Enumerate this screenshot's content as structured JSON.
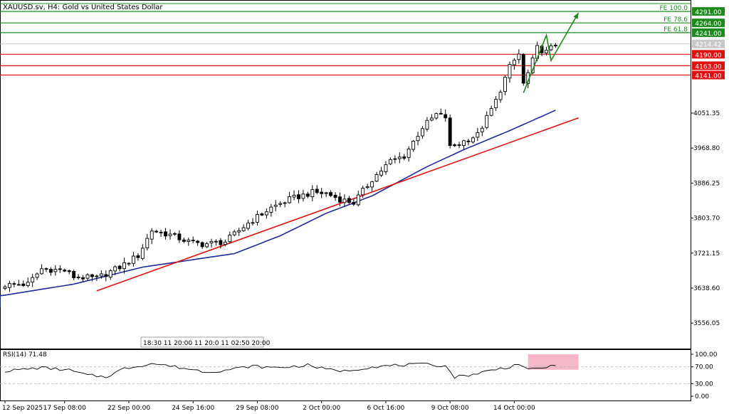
{
  "window": {
    "title": "XAUUSD.sv, H4:  Gold vs United States Dollar"
  },
  "colors": {
    "background": "#ffffff",
    "candle": "#000000",
    "moving_average": "#1e2a9c",
    "trendline": "#e01010",
    "fib_lines": "#1c8a1c",
    "resistance_label_bg": "#1c8a1c",
    "support_label_bg": "#e01010",
    "current_price_label_bg": "#c8c8c8",
    "rsi_line": "#000000",
    "rsi_highlight": "#f4aac0"
  },
  "chart_data": [
    {
      "type": "candlestick",
      "symbol": "XAUUSD.sv",
      "timeframe": "H4",
      "title": "XAUUSD.sv, H4:  Gold vs United States Dollar",
      "y_ticks": [
        "4291.00",
        "4264.00",
        "4241.00",
        "4214.42",
        "4190.00",
        "4163.00",
        "4141.00",
        "4051.35",
        "3968.80",
        "3886.25",
        "3803.70",
        "3721.15",
        "3638.60",
        "3556.05"
      ],
      "ylim": [
        3496,
        4318
      ],
      "x_ticks": [
        "12 Sep 2025",
        "17 Sep 08:00",
        "22 Sep 00:00",
        "24 Sep 16:00",
        "29 Sep 08:00",
        "2 Oct 00:00",
        "6 Oct 16:00",
        "9 Oct 08:00",
        "14 Oct 00:00"
      ],
      "x_tick_index": [
        0,
        13,
        27,
        41,
        55,
        69,
        83,
        97,
        111
      ],
      "bar_count": 121,
      "close_waypoints": [
        [
          0,
          3646
        ],
        [
          5,
          3648
        ],
        [
          8,
          3684
        ],
        [
          13,
          3680
        ],
        [
          15,
          3665
        ],
        [
          20,
          3662
        ],
        [
          25,
          3688
        ],
        [
          29,
          3715
        ],
        [
          32,
          3775
        ],
        [
          36,
          3764
        ],
        [
          40,
          3748
        ],
        [
          43,
          3742
        ],
        [
          48,
          3748
        ],
        [
          53,
          3792
        ],
        [
          58,
          3828
        ],
        [
          62,
          3848
        ],
        [
          67,
          3864
        ],
        [
          70,
          3862
        ],
        [
          73,
          3848
        ],
        [
          76,
          3840
        ],
        [
          80,
          3895
        ],
        [
          84,
          3938
        ],
        [
          87,
          3950
        ],
        [
          91,
          4018
        ],
        [
          94,
          4048
        ],
        [
          96,
          4042
        ],
        [
          97,
          3970
        ],
        [
          100,
          3985
        ],
        [
          103,
          4000
        ],
        [
          107,
          4080
        ],
        [
          110,
          4160
        ],
        [
          112,
          4190
        ],
        [
          113,
          4120
        ],
        [
          114,
          4145
        ],
        [
          116,
          4205
        ],
        [
          118,
          4195
        ],
        [
          120,
          4214
        ]
      ],
      "moving_average_waypoints": [
        [
          -21,
          3594
        ],
        [
          0,
          3622
        ],
        [
          15,
          3648
        ],
        [
          30,
          3688
        ],
        [
          50,
          3720
        ],
        [
          60,
          3762
        ],
        [
          70,
          3815
        ],
        [
          80,
          3856
        ],
        [
          92,
          3925
        ],
        [
          100,
          3965
        ],
        [
          110,
          4010
        ],
        [
          120,
          4058
        ]
      ],
      "trendline": {
        "from": [
          20,
          3632
        ],
        "to": [
          125,
          4040
        ]
      },
      "current_price": "4214.42",
      "resistance_levels": [
        {
          "label": "FE 100.0",
          "price": "4291.00"
        },
        {
          "label": "FE 78.6",
          "price": "4264.00"
        },
        {
          "label": "FE 61.8",
          "price": "4241.00"
        }
      ],
      "support_levels": [
        {
          "price": "4190.00"
        },
        {
          "price": "4163.00"
        },
        {
          "price": "4141.00"
        }
      ],
      "projection_path": [
        [
          113,
          4099
        ],
        [
          118,
          4235
        ],
        [
          119,
          4175
        ],
        [
          125,
          4288
        ]
      ],
      "time_scale_strip": "18:30 11 20:00 11 20:0 11 02:50 20:00"
    },
    {
      "type": "line",
      "name": "RSI(14)",
      "title": "RSI(14) 71.48",
      "current_value": 71.48,
      "ylim": [
        0,
        100
      ],
      "y_ticks": [
        "100.00",
        "70.00",
        "30.00",
        "0.00"
      ],
      "levels": [
        70,
        30
      ],
      "highlight_x_range": [
        114,
        125
      ],
      "highlight_y_range": [
        63,
        100
      ],
      "values_waypoints": [
        [
          0,
          60
        ],
        [
          8,
          68
        ],
        [
          14,
          62
        ],
        [
          18,
          50
        ],
        [
          22,
          46
        ],
        [
          26,
          66
        ],
        [
          32,
          78
        ],
        [
          36,
          72
        ],
        [
          40,
          65
        ],
        [
          44,
          58
        ],
        [
          48,
          62
        ],
        [
          54,
          72
        ],
        [
          58,
          68
        ],
        [
          62,
          70
        ],
        [
          66,
          74
        ],
        [
          70,
          64
        ],
        [
          74,
          60
        ],
        [
          80,
          70
        ],
        [
          86,
          74
        ],
        [
          92,
          76
        ],
        [
          96,
          72
        ],
        [
          98,
          46
        ],
        [
          102,
          52
        ],
        [
          106,
          62
        ],
        [
          110,
          70
        ],
        [
          112,
          78
        ],
        [
          114,
          62
        ],
        [
          118,
          70
        ],
        [
          120,
          71.48
        ]
      ]
    }
  ]
}
